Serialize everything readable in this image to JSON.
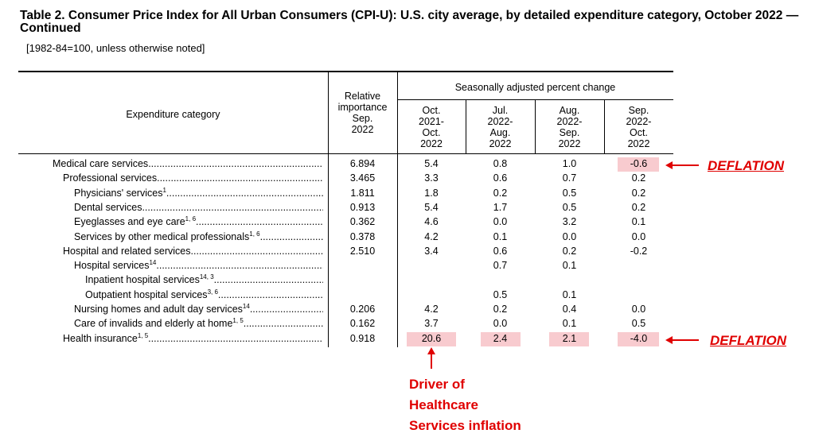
{
  "title": "Table 2. Consumer Price Index for All Urban Consumers (CPI-U): U.S. city average, by detailed expenditure category, October 2022 — Continued",
  "subnote": "[1982-84=100, unless otherwise noted]",
  "headers": {
    "category": "Expenditure category",
    "relative_importance": [
      "Relative",
      "importance",
      "Sep.",
      "2022"
    ],
    "seasonally": "Seasonally adjusted percent change",
    "periods": [
      [
        "Oct.",
        "2021-",
        "Oct.",
        "2022"
      ],
      [
        "Jul.",
        "2022-",
        "Aug.",
        "2022"
      ],
      [
        "Aug.",
        "2022-",
        "Sep.",
        "2022"
      ],
      [
        "Sep.",
        "2022-",
        "Oct.",
        "2022"
      ]
    ]
  },
  "rows": [
    {
      "label": "Medical care services",
      "sup": "",
      "ri": "6.894",
      "v1": "5.4",
      "v2": "0.8",
      "v3": "1.0",
      "v4": "-0.6"
    },
    {
      "label": "Professional services",
      "sup": "",
      "ri": "3.465",
      "v1": "3.3",
      "v2": "0.6",
      "v3": "0.7",
      "v4": "0.2"
    },
    {
      "label": "Physicians' services",
      "sup": "1",
      "ri": "1.811",
      "v1": "1.8",
      "v2": "0.2",
      "v3": "0.5",
      "v4": "0.2"
    },
    {
      "label": "Dental services",
      "sup": "",
      "ri": "0.913",
      "v1": "5.4",
      "v2": "1.7",
      "v3": "0.5",
      "v4": "0.2"
    },
    {
      "label": "Eyeglasses and eye care",
      "sup": "1, 6",
      "ri": "0.362",
      "v1": "4.6",
      "v2": "0.0",
      "v3": "3.2",
      "v4": "0.1"
    },
    {
      "label": "Services by other medical professionals",
      "sup": "1, 6",
      "ri": "0.378",
      "v1": "4.2",
      "v2": "0.1",
      "v3": "0.0",
      "v4": "0.0"
    },
    {
      "label": "Hospital and related services",
      "sup": "",
      "ri": "2.510",
      "v1": "3.4",
      "v2": "0.6",
      "v3": "0.2",
      "v4": "-0.2"
    },
    {
      "label": "Hospital services",
      "sup": "14",
      "ri": "",
      "v1": "",
      "v2": "0.7",
      "v3": "0.1",
      "v4": ""
    },
    {
      "label": "Inpatient hospital services",
      "sup": "14, 3",
      "ri": "",
      "v1": "",
      "v2": "",
      "v3": "",
      "v4": ""
    },
    {
      "label": "Outpatient hospital services",
      "sup": "3, 6",
      "ri": "",
      "v1": "",
      "v2": "0.5",
      "v3": "0.1",
      "v4": ""
    },
    {
      "label": "Nursing homes and adult day services",
      "sup": "14",
      "ri": "0.206",
      "v1": "4.2",
      "v2": "0.2",
      "v3": "0.4",
      "v4": "0.0"
    },
    {
      "label": "Care of invalids and elderly at home",
      "sup": "1, 5",
      "ri": "0.162",
      "v1": "3.7",
      "v2": "0.0",
      "v3": "0.1",
      "v4": "0.5"
    },
    {
      "label": "Health insurance",
      "sup": "1, 5",
      "ri": "0.918",
      "v1": "20.6",
      "v2": "2.4",
      "v3": "2.1",
      "v4": "-4.0"
    }
  ],
  "annotations": {
    "deflation_1": "DEFLATION",
    "deflation_2": "DEFLATION",
    "driver_lines": [
      "Driver of",
      "Healthcare",
      "Services inflation"
    ],
    "highlight_color": "#f8cbcf",
    "annotation_color": "#e00000"
  }
}
